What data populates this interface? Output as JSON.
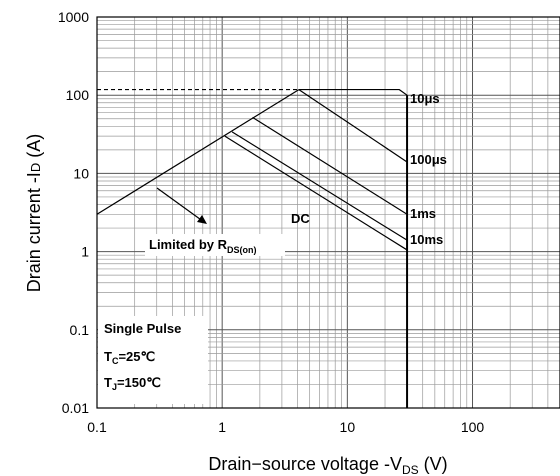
{
  "chart_data": {
    "type": "line",
    "title": "",
    "xlabel": "Drain−source voltage -V",
    "xlabel_sub": "DS",
    "xlabel_unit": " (V)",
    "ylabel": "Drain current -I",
    "ylabel_sub": "D",
    "ylabel_unit": " (A)",
    "x_scale": "log",
    "y_scale": "log",
    "xlim": [
      0.1,
      500
    ],
    "ylim": [
      0.01,
      1000
    ],
    "grid": true,
    "x_ticks": [
      "0.1",
      "1",
      "10",
      "100"
    ],
    "x_tick_values": [
      0.1,
      1,
      10,
      100
    ],
    "y_ticks": [
      "1000",
      "100",
      "10",
      "1",
      "0.1",
      "0.01"
    ],
    "y_tick_values": [
      1000,
      100,
      10,
      1,
      0.1,
      0.01
    ],
    "rds_on_limit": {
      "x": [
        0.1,
        4.1
      ],
      "y": [
        3,
        118
      ]
    },
    "pulse_limit": {
      "x": [
        0.1,
        4.1
      ],
      "y": [
        118,
        118
      ]
    },
    "series": [
      {
        "name": "10μs",
        "x": [
          4.1,
          26,
          30
        ],
        "y": [
          118,
          118,
          100
        ]
      },
      {
        "name": "100μs",
        "x": [
          4.1,
          30
        ],
        "y": [
          118,
          14
        ]
      },
      {
        "name": "1ms",
        "x": [
          1.75,
          30
        ],
        "y": [
          52,
          3
        ]
      },
      {
        "name": "10ms",
        "x": [
          1.2,
          30
        ],
        "y": [
          34,
          1.4
        ]
      },
      {
        "name": "DC",
        "x": [
          1.05,
          30
        ],
        "y": [
          30,
          1.05
        ]
      }
    ],
    "voltage_limit": {
      "x": [
        30,
        30
      ],
      "y": [
        0.01,
        100
      ]
    },
    "labels": {
      "c10us": "10μs",
      "c100us": "100μs",
      "c1ms": "1ms",
      "c10ms": "10ms",
      "dc": "DC",
      "limited_main": "Limited by R",
      "limited_sub": "DS(on)"
    },
    "notes": {
      "line1": "Single Pulse",
      "tc_main": "T",
      "tc_sub": "C",
      "tc_value": "=25℃",
      "tj_main": "T",
      "tj_sub": "J",
      "tj_value": "=150℃"
    }
  }
}
